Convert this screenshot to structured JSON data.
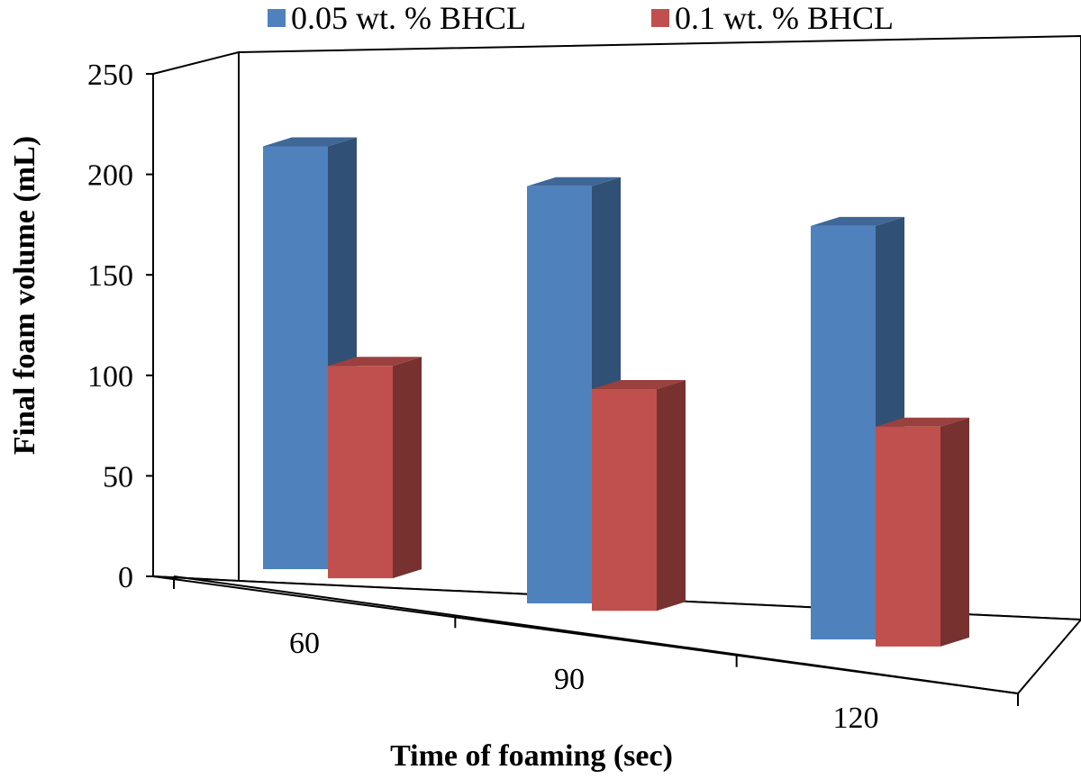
{
  "chart_data": {
    "type": "bar",
    "style": "3d-clustered-column",
    "categories": [
      "60",
      "90",
      "120"
    ],
    "series": [
      {
        "name": "0.05 wt. % BHCL",
        "color": "#4F81BD",
        "values": [
          225,
          222,
          220
        ]
      },
      {
        "name": "0.1 wt. % BHCL",
        "color": "#C0504D",
        "values": [
          113,
          118,
          117
        ]
      }
    ],
    "xlabel": "Time of foaming (sec)",
    "ylabel": "Final foam volume (mL)",
    "ylim": [
      0,
      250
    ],
    "yticks": [
      "0",
      "50",
      "100",
      "150",
      "200",
      "250"
    ],
    "grid": false,
    "legend_position": "top"
  }
}
